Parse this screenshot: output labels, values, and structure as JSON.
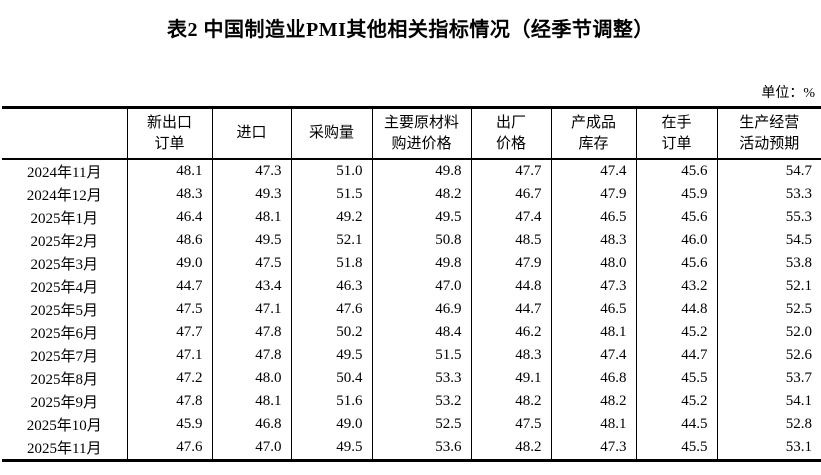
{
  "page": {
    "title": "表2 中国制造业PMI其他相关指标情况（经季节调整）",
    "unit_label": "单位：%"
  },
  "table": {
    "corner_label": "",
    "columns": [
      "新出口\n订单",
      "进口",
      "采购量",
      "主要原材料\n购进价格",
      "出厂\n价格",
      "产成品\n库存",
      "在手\n订单",
      "生产经营\n活动预期"
    ],
    "rows": [
      {
        "month": "2024年11月",
        "values": [
          "48.1",
          "47.3",
          "51.0",
          "49.8",
          "47.7",
          "47.4",
          "45.6",
          "54.7"
        ]
      },
      {
        "month": "2024年12月",
        "values": [
          "48.3",
          "49.3",
          "51.5",
          "48.2",
          "46.7",
          "47.9",
          "45.9",
          "53.3"
        ]
      },
      {
        "month": "2025年1月",
        "values": [
          "46.4",
          "48.1",
          "49.2",
          "49.5",
          "47.4",
          "46.5",
          "45.6",
          "55.3"
        ]
      },
      {
        "month": "2025年2月",
        "values": [
          "48.6",
          "49.5",
          "52.1",
          "50.8",
          "48.5",
          "48.3",
          "46.0",
          "54.5"
        ]
      },
      {
        "month": "2025年3月",
        "values": [
          "49.0",
          "47.5",
          "51.8",
          "49.8",
          "47.9",
          "48.0",
          "45.6",
          "53.8"
        ]
      },
      {
        "month": "2025年4月",
        "values": [
          "44.7",
          "43.4",
          "46.3",
          "47.0",
          "44.8",
          "47.3",
          "43.2",
          "52.1"
        ]
      },
      {
        "month": "2025年5月",
        "values": [
          "47.5",
          "47.1",
          "47.6",
          "46.9",
          "44.7",
          "46.5",
          "44.8",
          "52.5"
        ]
      },
      {
        "month": "2025年6月",
        "values": [
          "47.7",
          "47.8",
          "50.2",
          "48.4",
          "46.2",
          "48.1",
          "45.2",
          "52.0"
        ]
      },
      {
        "month": "2025年7月",
        "values": [
          "47.1",
          "47.8",
          "49.5",
          "51.5",
          "48.3",
          "47.4",
          "44.7",
          "52.6"
        ]
      },
      {
        "month": "2025年8月",
        "values": [
          "47.2",
          "48.0",
          "50.4",
          "53.3",
          "49.1",
          "46.8",
          "45.5",
          "53.7"
        ]
      },
      {
        "month": "2025年9月",
        "values": [
          "47.8",
          "48.1",
          "51.6",
          "53.2",
          "48.2",
          "48.2",
          "45.2",
          "54.1"
        ]
      },
      {
        "month": "2025年10月",
        "values": [
          "45.9",
          "46.8",
          "49.0",
          "52.5",
          "47.5",
          "48.1",
          "44.5",
          "52.8"
        ]
      },
      {
        "month": "2025年11月",
        "values": [
          "47.6",
          "47.0",
          "49.5",
          "53.6",
          "48.2",
          "47.3",
          "45.5",
          "53.1"
        ]
      }
    ]
  }
}
